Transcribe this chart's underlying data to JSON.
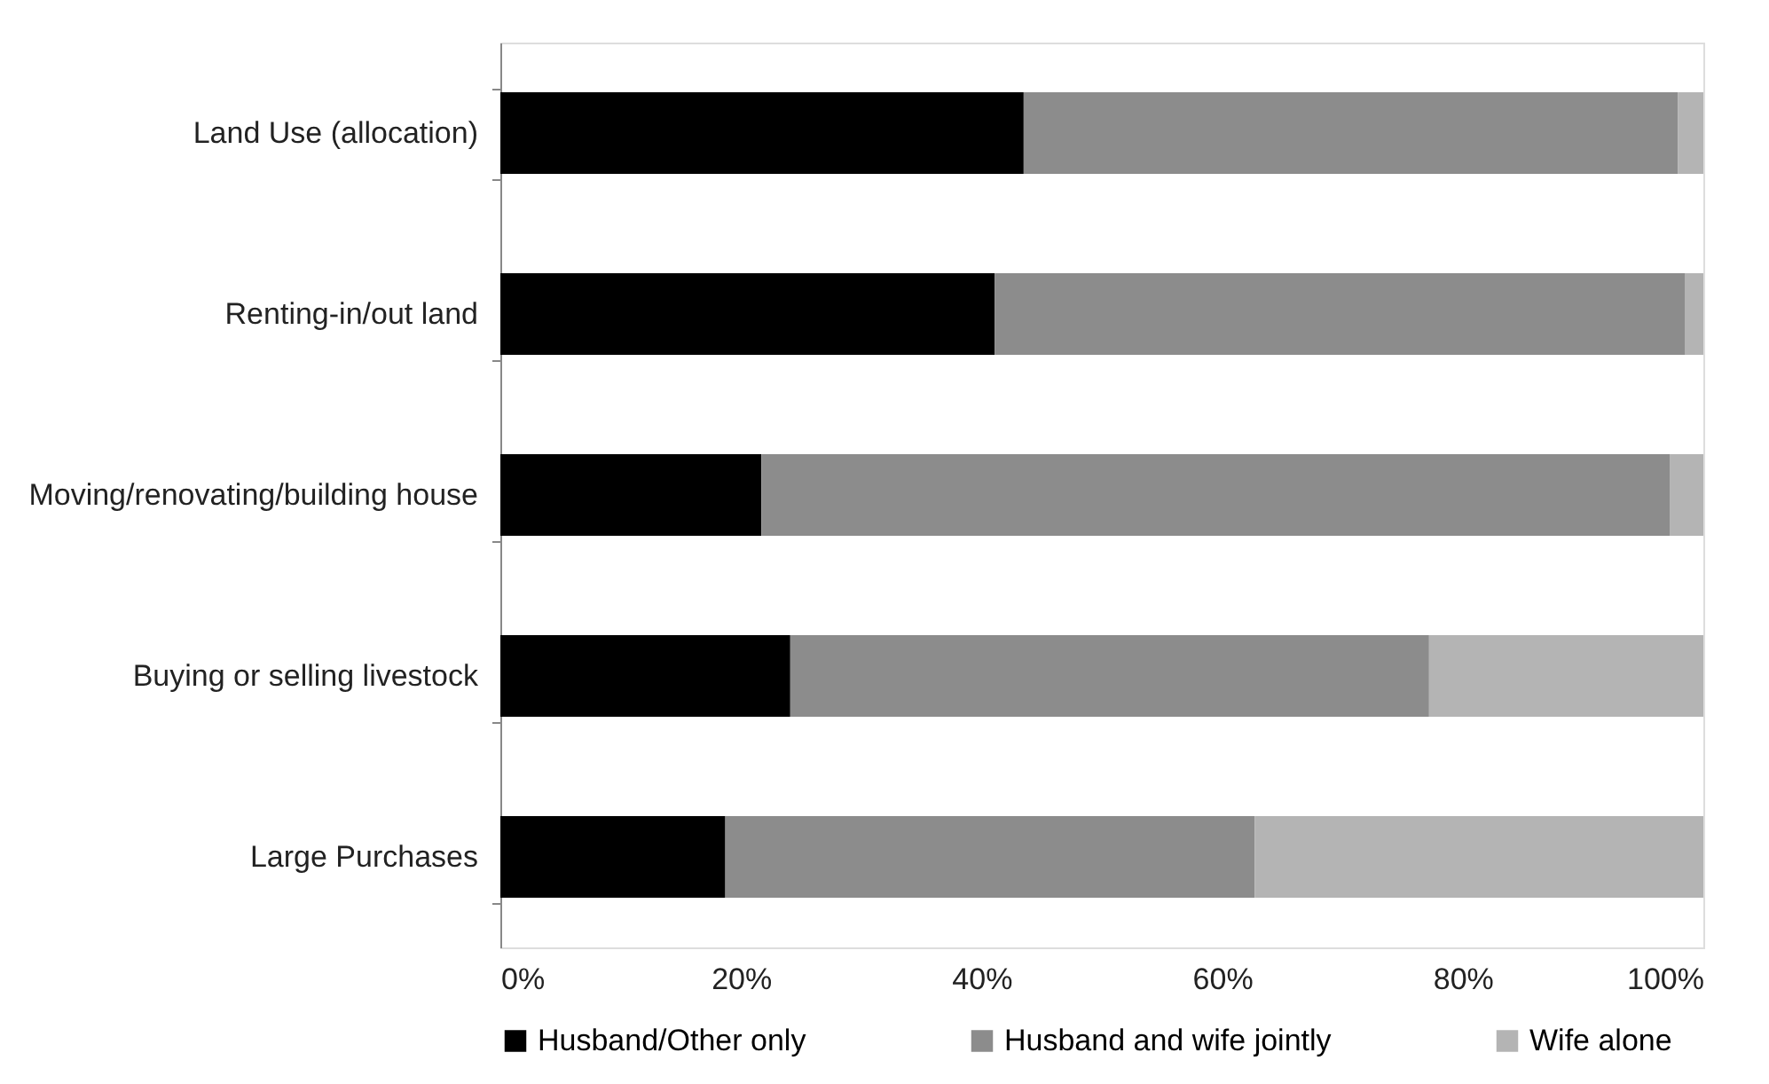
{
  "chart_data": {
    "type": "bar",
    "orientation": "horizontal",
    "stacked": true,
    "categories": [
      "Land Use (allocation)",
      "Renting-in/out land",
      "Moving/renovating/building house",
      "Buying or selling livestock",
      "Large Purchases"
    ],
    "series": [
      {
        "name": "Husband/Other only",
        "color": "#000000",
        "values": [
          43.5,
          41.1,
          21.7,
          24.1,
          18.7
        ]
      },
      {
        "name": "Husband and wife jointly",
        "color": "#8c8c8c",
        "values": [
          54.4,
          57.4,
          75.5,
          53.1,
          44.0
        ]
      },
      {
        "name": "Wife alone",
        "color": "#b4b4b4",
        "values": [
          2.1,
          1.5,
          2.8,
          22.8,
          37.3
        ]
      }
    ],
    "xlim": [
      0,
      100
    ],
    "xticks": [
      {
        "value": 0,
        "label": "0%"
      },
      {
        "value": 20,
        "label": "20%"
      },
      {
        "value": 40,
        "label": "40%"
      },
      {
        "value": 60,
        "label": "60%"
      },
      {
        "value": 80,
        "label": "80%"
      },
      {
        "value": 100,
        "label": "100%"
      }
    ],
    "grid": false,
    "legend": "bottom"
  }
}
